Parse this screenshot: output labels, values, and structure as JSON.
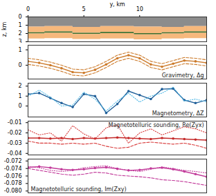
{
  "chart_data": [
    {
      "type": "area",
      "xlabel": "y, km",
      "ylabel": "z, km",
      "xlim": [
        0,
        16
      ],
      "xticks": [
        0,
        5,
        10
      ],
      "ylim": [
        0,
        3
      ],
      "yticks": [
        0,
        1,
        2,
        3
      ],
      "x": [
        0,
        1.5,
        4,
        6.5,
        9.5,
        12,
        14,
        16
      ],
      "boundaries": [
        [
          0,
          0,
          0,
          0,
          0,
          0,
          0,
          0
        ],
        [
          1.2,
          1.15,
          1.25,
          1.15,
          1.2,
          1.25,
          1.15,
          1.15
        ],
        [
          1.9,
          1.8,
          1.95,
          1.85,
          2.0,
          1.9,
          1.8,
          1.8
        ],
        [
          2.05,
          1.95,
          2.1,
          2.0,
          2.15,
          2.05,
          1.95,
          1.95
        ],
        [
          2.65,
          2.6,
          2.7,
          2.65,
          2.75,
          2.65,
          2.6,
          2.6
        ]
      ],
      "colors": [
        "#8c8c8c",
        "#f6b87c",
        "#3f6e2c",
        "#f6b87c"
      ]
    },
    {
      "type": "line",
      "annotations": [
        "Gravimetry, Δg"
      ],
      "tick_labels": "y",
      "xlim": [
        0,
        16
      ],
      "ylim": [
        -0.9,
        1.3
      ],
      "yticks": [
        0,
        1
      ],
      "x": [
        0,
        1,
        2,
        3,
        4,
        5,
        6,
        7,
        8,
        9,
        10,
        11,
        12,
        13,
        14,
        15,
        16
      ],
      "series": [
        {
          "color": "#cc7a2a",
          "line_style": "solid",
          "marker": "circle",
          "values": [
            0.25,
            0.15,
            0.0,
            -0.2,
            -0.45,
            -0.5,
            -0.3,
            0.05,
            0.45,
            0.65,
            0.45,
            0.05,
            -0.1,
            0.1,
            0.3,
            0.25,
            0.15
          ]
        },
        {
          "color": "#cc7a2a",
          "line_style": "dashed",
          "marker": "none",
          "values": [
            0.45,
            0.35,
            0.2,
            0.0,
            -0.25,
            -0.3,
            -0.1,
            0.25,
            0.65,
            0.85,
            0.65,
            0.25,
            0.1,
            0.3,
            0.5,
            0.45,
            0.35
          ]
        },
        {
          "color": "#cc7a2a",
          "line_style": "dashed",
          "marker": "none",
          "values": [
            0.05,
            -0.05,
            -0.2,
            -0.4,
            -0.65,
            -0.7,
            -0.5,
            -0.15,
            0.25,
            0.45,
            0.25,
            -0.15,
            -0.3,
            -0.1,
            0.1,
            0.05,
            -0.05
          ]
        }
      ]
    },
    {
      "type": "line",
      "annotations": [
        "Magnetometry, ΔZ"
      ],
      "tick_labels": "y",
      "xlim": [
        0,
        16
      ],
      "ylim": [
        -1.1,
        2.3
      ],
      "yticks": [
        0,
        1,
        2
      ],
      "x": [
        0,
        1,
        2,
        3,
        4,
        5,
        6,
        7,
        8,
        9,
        10,
        11,
        12,
        13,
        14,
        15,
        16
      ],
      "series": [
        {
          "color": "#1f5f99",
          "line_style": "solid",
          "marker": "circle",
          "values": [
            1.2,
            1.3,
            0.8,
            0.3,
            -0.1,
            1.2,
            1.0,
            -0.7,
            0.2,
            1.5,
            1.1,
            0.7,
            1.7,
            1.75,
            0.6,
            0.3,
            0.6
          ]
        },
        {
          "color": "#4fb8e6",
          "line_style": "dotted",
          "marker": "none",
          "values": [
            1.0,
            1.6,
            0.9,
            0.0,
            0.1,
            1.4,
            0.7,
            -0.5,
            0.5,
            1.3,
            0.4,
            1.0,
            1.3,
            1.9,
            0.5,
            0.7,
            0.4
          ]
        }
      ]
    },
    {
      "type": "line",
      "annotations": [
        "Magnetotelluric sounding, Re(Zyx)"
      ],
      "tick_labels": "y",
      "xlim": [
        0,
        16
      ],
      "ylim": [
        -0.0415,
        -0.0085
      ],
      "yticks": [
        -0.01,
        -0.02,
        -0.03,
        -0.04
      ],
      "x": [
        0,
        1,
        2,
        3,
        4,
        5,
        6,
        7,
        8,
        9,
        10,
        11,
        12,
        13,
        14,
        15,
        16
      ],
      "series": [
        {
          "color": "#c42a2a",
          "line_style": "solid",
          "marker": "circle",
          "values": [
            -0.025,
            -0.025,
            -0.0255,
            -0.025,
            -0.026,
            -0.025,
            -0.0255,
            -0.025,
            -0.0245,
            -0.025,
            -0.0255,
            -0.026,
            -0.025,
            -0.0255,
            -0.026,
            -0.0265,
            -0.027
          ]
        },
        {
          "color": "#d83a3a",
          "line_style": "dotted",
          "marker": "none",
          "values": [
            -0.017,
            -0.022,
            -0.02,
            -0.028,
            -0.013,
            -0.021,
            -0.026,
            -0.015,
            -0.012,
            -0.03,
            -0.02,
            -0.016,
            -0.022,
            -0.018,
            -0.014,
            -0.016,
            -0.02
          ]
        },
        {
          "color": "#d83a3a",
          "line_style": "dashed",
          "marker": "none",
          "values": [
            -0.028,
            -0.03,
            -0.03,
            -0.031,
            -0.03,
            -0.031,
            -0.03,
            -0.033,
            -0.035,
            -0.034,
            -0.03,
            -0.029,
            -0.03,
            -0.031,
            -0.03,
            -0.032,
            -0.035
          ]
        }
      ]
    },
    {
      "type": "line",
      "annotations": [
        "Magnetotelluric sounding, Im(Zxy)"
      ],
      "tick_labels": "y",
      "xlim": [
        0,
        16
      ],
      "ylim": [
        -0.0805,
        -0.0715
      ],
      "yticks": [
        -0.072,
        -0.074,
        -0.076,
        -0.078,
        {
          "value": -0.08,
          "label": "-0.080"
        }
      ],
      "x": [
        0,
        1,
        2,
        3,
        4,
        5,
        6,
        7,
        8,
        9,
        10,
        11,
        12,
        13,
        14,
        15,
        16
      ],
      "series": [
        {
          "color": "#c23a9a",
          "line_style": "solid",
          "marker": "circle",
          "values": [
            -0.0737,
            -0.0735,
            -0.0738,
            -0.0742,
            -0.0744,
            -0.0742,
            -0.0739,
            -0.0737,
            -0.0741,
            -0.0745,
            -0.0744,
            -0.074,
            -0.0738,
            -0.0742,
            -0.0748,
            -0.0755,
            -0.0762
          ]
        },
        {
          "color": "#c23a9a",
          "line_style": "dotted",
          "marker": "none",
          "values": [
            -0.0735,
            -0.0738,
            -0.0745,
            -0.0748,
            -0.0745,
            -0.0738,
            -0.0735,
            -0.0733,
            -0.074,
            -0.0745,
            -0.0748,
            -0.0742,
            -0.0736,
            -0.074,
            -0.0745,
            -0.0748,
            -0.0752
          ]
        },
        {
          "color": "#c23a9a",
          "line_style": "dashed",
          "marker": "none",
          "values": [
            -0.074,
            -0.0745,
            -0.075,
            -0.0755,
            -0.0758,
            -0.0755,
            -0.075,
            -0.0752,
            -0.0758,
            -0.076,
            -0.0762,
            -0.0765,
            -0.077,
            -0.0772,
            -0.0775,
            -0.078,
            -0.0785
          ]
        }
      ]
    }
  ]
}
